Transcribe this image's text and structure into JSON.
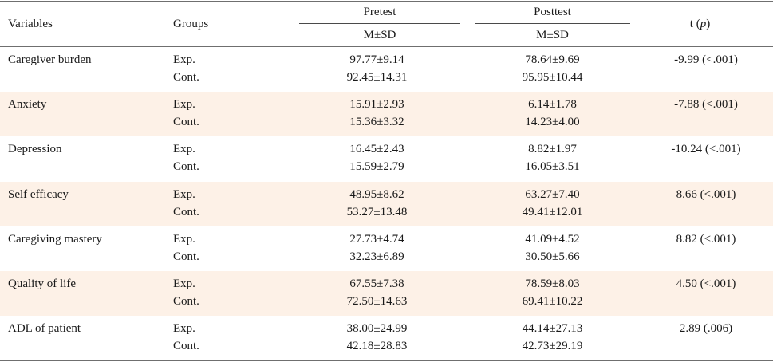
{
  "header": {
    "variables": "Variables",
    "groups": "Groups",
    "pretest": "Pretest",
    "posttest": "Posttest",
    "msd": "M±SD",
    "t_label": "t (",
    "p_label": "p",
    "t_close": ")"
  },
  "rows": [
    {
      "variable": "Caregiver burden",
      "exp_label": "Exp.",
      "cont_label": "Cont.",
      "pre_exp": "97.77±9.14",
      "pre_cont": "92.45±14.31",
      "post_exp": "78.64±9.69",
      "post_cont": "95.95±10.44",
      "t": "-9.99 (<.001)"
    },
    {
      "variable": "Anxiety",
      "exp_label": "Exp.",
      "cont_label": "Cont.",
      "pre_exp": "15.91±2.93",
      "pre_cont": "15.36±3.32",
      "post_exp": "6.14±1.78",
      "post_cont": "14.23±4.00",
      "t": "-7.88 (<.001)"
    },
    {
      "variable": "Depression",
      "exp_label": "Exp.",
      "cont_label": "Cont.",
      "pre_exp": "16.45±2.43",
      "pre_cont": "15.59±2.79",
      "post_exp": "8.82±1.97",
      "post_cont": "16.05±3.51",
      "t": "-10.24 (<.001)"
    },
    {
      "variable": "Self efficacy",
      "exp_label": "Exp.",
      "cont_label": "Cont.",
      "pre_exp": "48.95±8.62",
      "pre_cont": "53.27±13.48",
      "post_exp": "63.27±7.40",
      "post_cont": "49.41±12.01",
      "t": "8.66 (<.001)"
    },
    {
      "variable": "Caregiving mastery",
      "exp_label": "Exp.",
      "cont_label": "Cont.",
      "pre_exp": "27.73±4.74",
      "pre_cont": "32.23±6.89",
      "post_exp": "41.09±4.52",
      "post_cont": "30.50±5.66",
      "t": "8.82 (<.001)"
    },
    {
      "variable": "Quality of life",
      "exp_label": "Exp.",
      "cont_label": "Cont.",
      "pre_exp": "67.55±7.38",
      "pre_cont": "72.50±14.63",
      "post_exp": "78.59±8.03",
      "post_cont": "69.41±10.22",
      "t": "4.50 (<.001)"
    },
    {
      "variable": "ADL of patient",
      "exp_label": "Exp.",
      "cont_label": "Cont.",
      "pre_exp": "38.00±24.99",
      "pre_cont": "42.18±28.83",
      "post_exp": "44.14±27.13",
      "post_cont": "42.73±29.19",
      "t": "2.89 (.006)"
    }
  ],
  "band_color": "#fdf1e7"
}
